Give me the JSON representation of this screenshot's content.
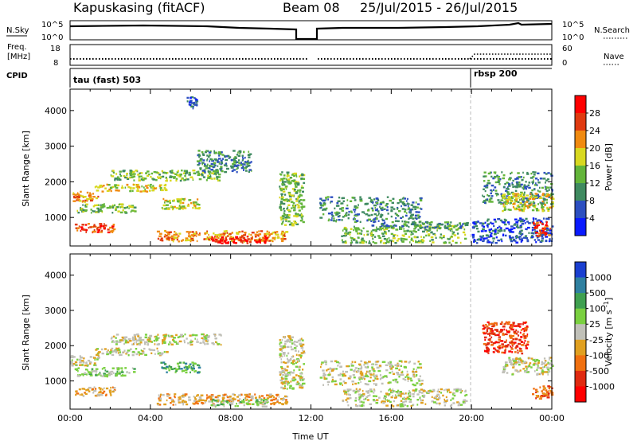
{
  "header": {
    "station": "Kapuskasing (fitACF)",
    "beam": "Beam 08",
    "dates": "25/Jul/2015 - 26/Jul/2015"
  },
  "noise_panel": {
    "left_label": "N.Sky",
    "left_ticks": [
      "10^5",
      "10^0"
    ],
    "right_ticks": [
      "10^5",
      "10^0"
    ],
    "right_label": "N.Search"
  },
  "freq_panel": {
    "left_label_1": "Freq.",
    "left_label_2": "[MHz]",
    "left_ticks": [
      "18",
      "8"
    ],
    "right_ticks": [
      "60",
      "0"
    ],
    "right_label": "Nave"
  },
  "cpid": {
    "label": "CPID",
    "modes": [
      {
        "name": "tau (fast) 503",
        "start_hour": 0
      },
      {
        "name": "rbsp 200",
        "start_hour": 20
      }
    ]
  },
  "chart_data": [
    {
      "type": "heatmap",
      "name": "power",
      "ylabel": "Slant Range [km]",
      "xlabel": "",
      "xlim": [
        0,
        24
      ],
      "ylim": [
        200,
        4600
      ],
      "yticks": [
        1000,
        2000,
        3000,
        4000
      ],
      "colorbar": {
        "label": "Power [dB]",
        "ticks": [
          "4",
          "8",
          "12",
          "16",
          "20",
          "24",
          "28"
        ],
        "colors": [
          "#0a1aff",
          "#2c4fc0",
          "#3f8a60",
          "#63b53a",
          "#d8d820",
          "#f08a10",
          "#e03a10",
          "#ff0000"
        ]
      },
      "regions": [
        {
          "t": [
            0.0,
            1.4
          ],
          "r": [
            1450,
            1750
          ],
          "lvl": 5
        },
        {
          "t": [
            1.2,
            4.8
          ],
          "r": [
            1750,
            1950
          ],
          "lvl": 4
        },
        {
          "t": [
            2.0,
            7.5
          ],
          "r": [
            2050,
            2350
          ],
          "lvl": 3
        },
        {
          "t": [
            0.2,
            3.2
          ],
          "r": [
            1150,
            1400
          ],
          "lvl": 3
        },
        {
          "t": [
            0.2,
            2.2
          ],
          "r": [
            600,
            850
          ],
          "lvl": 6
        },
        {
          "t": [
            4.3,
            10.8
          ],
          "r": [
            350,
            650
          ],
          "lvl": 5
        },
        {
          "t": [
            7.0,
            9.8
          ],
          "r": [
            300,
            500
          ],
          "lvl": 7
        },
        {
          "t": [
            4.5,
            6.5
          ],
          "r": [
            1250,
            1550
          ],
          "lvl": 4
        },
        {
          "t": [
            10.4,
            11.6
          ],
          "r": [
            800,
            2300
          ],
          "lvl": 3
        },
        {
          "t": [
            6.3,
            9.0
          ],
          "r": [
            2300,
            2900
          ],
          "lvl": 2
        },
        {
          "t": [
            5.8,
            6.3
          ],
          "r": [
            4000,
            4400
          ],
          "lvl": 1
        },
        {
          "t": [
            12.4,
            17.5
          ],
          "r": [
            900,
            1600
          ],
          "lvl": 2
        },
        {
          "t": [
            13.5,
            19.7
          ],
          "r": [
            300,
            800
          ],
          "lvl": 3
        },
        {
          "t": [
            15.0,
            19.8
          ],
          "r": [
            700,
            900
          ],
          "lvl": 2
        },
        {
          "t": [
            20.5,
            24.0
          ],
          "r": [
            1400,
            2300
          ],
          "lvl": 2
        },
        {
          "t": [
            21.5,
            24.0
          ],
          "r": [
            1200,
            1700
          ],
          "lvl": 4
        },
        {
          "t": [
            20.0,
            24.0
          ],
          "r": [
            300,
            1000
          ],
          "lvl": 1
        },
        {
          "t": [
            23.0,
            24.0
          ],
          "r": [
            500,
            900
          ],
          "lvl": 6
        }
      ]
    },
    {
      "type": "heatmap",
      "name": "velocity",
      "ylabel": "Slant Range [km]",
      "xlabel": "Time UT",
      "xlim": [
        0,
        24
      ],
      "ylim": [
        200,
        4600
      ],
      "yticks": [
        1000,
        2000,
        3000,
        4000
      ],
      "xticks": [
        "00:00",
        "04:00",
        "08:00",
        "12:00",
        "16:00",
        "20:00",
        "00:00"
      ],
      "colorbar": {
        "label": "Velocity [m s^-1]",
        "ticks": [
          "1000",
          "500",
          "100",
          "25",
          "-25",
          "-100",
          "-500",
          "-1000"
        ],
        "colors": [
          "#1a3fd0",
          "#2f80a0",
          "#3fa050",
          "#7ad040",
          "#c0c0b8",
          "#e0a020",
          "#f07010",
          "#e02a10",
          "#ff0000"
        ]
      },
      "regions": [
        {
          "t": [
            0.0,
            1.4
          ],
          "r": [
            1450,
            1750
          ],
          "lvl": 4
        },
        {
          "t": [
            1.2,
            4.8
          ],
          "r": [
            1750,
            1950
          ],
          "lvl": 4
        },
        {
          "t": [
            2.0,
            7.5
          ],
          "r": [
            2050,
            2350
          ],
          "lvl": 4
        },
        {
          "t": [
            0.2,
            3.2
          ],
          "r": [
            1150,
            1400
          ],
          "lvl": 3
        },
        {
          "t": [
            0.2,
            2.2
          ],
          "r": [
            600,
            850
          ],
          "lvl": 5
        },
        {
          "t": [
            4.3,
            10.8
          ],
          "r": [
            350,
            650
          ],
          "lvl": 5
        },
        {
          "t": [
            7.0,
            9.8
          ],
          "r": [
            300,
            500
          ],
          "lvl": 3
        },
        {
          "t": [
            4.5,
            6.5
          ],
          "r": [
            1250,
            1550
          ],
          "lvl": 2
        },
        {
          "t": [
            10.4,
            11.6
          ],
          "r": [
            800,
            2300
          ],
          "lvl": 4
        },
        {
          "t": [
            12.4,
            17.5
          ],
          "r": [
            900,
            1600
          ],
          "lvl": 4
        },
        {
          "t": [
            13.5,
            19.7
          ],
          "r": [
            300,
            800
          ],
          "lvl": 4
        },
        {
          "t": [
            20.5,
            22.8
          ],
          "r": [
            1800,
            2700
          ],
          "lvl": 7
        },
        {
          "t": [
            21.5,
            24.0
          ],
          "r": [
            1200,
            1700
          ],
          "lvl": 4
        },
        {
          "t": [
            23.0,
            24.0
          ],
          "r": [
            500,
            900
          ],
          "lvl": 6
        }
      ]
    }
  ]
}
